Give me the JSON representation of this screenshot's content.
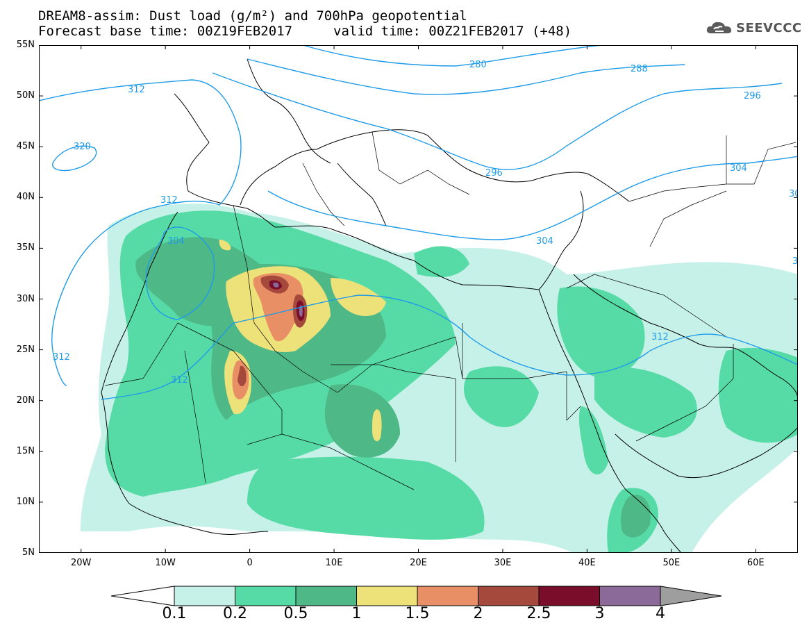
{
  "header": {
    "line1": "DREAM8-assim: Dust load (g/m²) and 700hPa geopotential",
    "line2": "Forecast base time: 00Z19FEB2017",
    "valid": "valid time: 00Z21FEB2017 (+48)"
  },
  "logo": {
    "text": "SEEVCCC",
    "icon": "cloud-icon"
  },
  "map": {
    "lon_range": [
      -25,
      65
    ],
    "lat_range": [
      5,
      55
    ],
    "lat_labels": [
      "55N",
      "50N",
      "45N",
      "40N",
      "35N",
      "30N",
      "25N",
      "20N",
      "15N",
      "10N",
      "5N"
    ],
    "lon_labels": [
      "20W",
      "10W",
      "0",
      "10E",
      "20E",
      "30E",
      "40E",
      "50E",
      "60E"
    ],
    "contour_labels": [
      "280",
      "288",
      "296",
      "296",
      "304",
      "304",
      "304",
      "312",
      "312",
      "312",
      "312",
      "312",
      "320",
      "30",
      "3"
    ],
    "colors": {
      "coastline": "#000000",
      "contour": "#1e9be8"
    }
  },
  "colorbar": {
    "labels": [
      "0.1",
      "0.2",
      "0.5",
      "1",
      "1.5",
      "2",
      "2.5",
      "3",
      "4"
    ],
    "colors": [
      "#c6f1e8",
      "#57dba6",
      "#4fb887",
      "#ede27a",
      "#e88f65",
      "#a4493c",
      "#7a0e2a",
      "#8b6a9a",
      "#9e9e9e"
    ]
  }
}
